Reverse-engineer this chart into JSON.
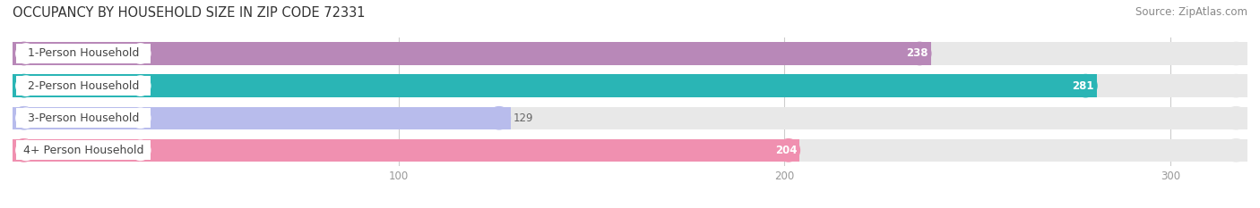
{
  "title": "OCCUPANCY BY HOUSEHOLD SIZE IN ZIP CODE 72331",
  "source": "Source: ZipAtlas.com",
  "categories": [
    "1-Person Household",
    "2-Person Household",
    "3-Person Household",
    "4+ Person Household"
  ],
  "values": [
    238,
    281,
    129,
    204
  ],
  "bar_colors": [
    "#b888b8",
    "#2ab5b5",
    "#b8bcec",
    "#f090b0"
  ],
  "bar_bg_color": "#e8e8e8",
  "xlim": [
    0,
    320
  ],
  "xticks": [
    100,
    200,
    300
  ],
  "title_fontsize": 10.5,
  "source_fontsize": 8.5,
  "label_fontsize": 9,
  "value_fontsize": 8.5,
  "background_color": "#ffffff"
}
